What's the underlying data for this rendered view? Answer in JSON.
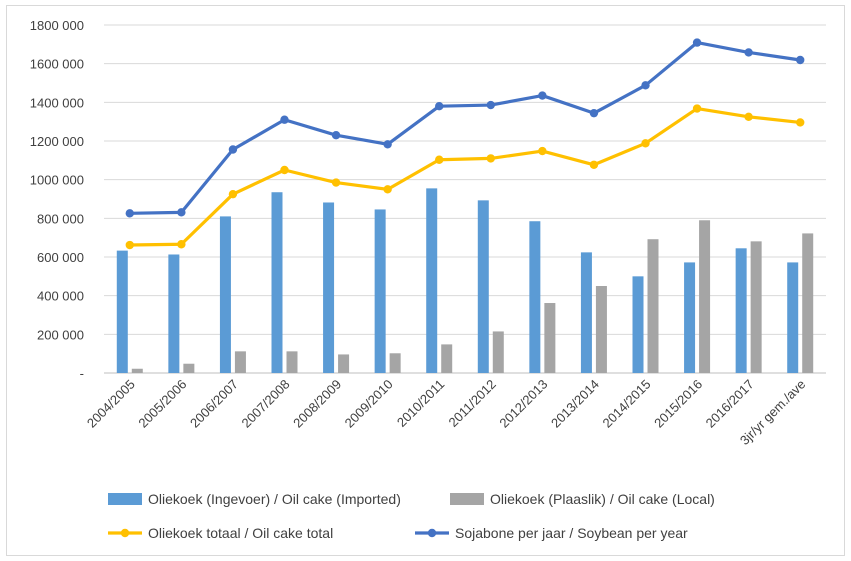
{
  "chart_data": {
    "type": "bar+line",
    "categories": [
      "2004/2005",
      "2005/2006",
      "2006/2007",
      "2007/2008",
      "2008/2009",
      "2009/2010",
      "2010/2011",
      "2011/2012",
      "2012/2013",
      "2013/2014",
      "2014/2015",
      "2015/2016",
      "2016/2017",
      "3jr/yr gem./ave"
    ],
    "series": [
      {
        "name": "Oliekoek (Ingevoer) / Oil cake (Imported)",
        "type": "bar",
        "color": "#5b9bd5",
        "values": [
          633000,
          613000,
          810000,
          935000,
          882000,
          846000,
          955000,
          893000,
          785000,
          624000,
          500000,
          572000,
          645000,
          572000
        ]
      },
      {
        "name": "Oliekoek (Plaaslik) / Oil cake (Local)",
        "type": "bar",
        "color": "#a5a5a5",
        "values": [
          22000,
          48000,
          112000,
          112000,
          96000,
          102000,
          148000,
          215000,
          362000,
          450000,
          692000,
          790000,
          681000,
          722000
        ]
      },
      {
        "name": "Oliekoek totaal / Oil cake total",
        "type": "line",
        "color": "#ffc000",
        "values": [
          662000,
          666000,
          925000,
          1050000,
          985000,
          950000,
          1103000,
          1110000,
          1148000,
          1077000,
          1188000,
          1368000,
          1325000,
          1296000
        ]
      },
      {
        "name": "Sojabone per jaar / Soybean per year",
        "type": "line",
        "color": "#4472c4",
        "values": [
          826000,
          831000,
          1156000,
          1310000,
          1230000,
          1183000,
          1380000,
          1386000,
          1435000,
          1344000,
          1488000,
          1709000,
          1658000,
          1619000
        ]
      }
    ],
    "ylim": [
      0,
      1800000
    ],
    "yticks": [
      {
        "value": 0,
        "label": "-"
      },
      {
        "value": 200000,
        "label": "200 000"
      },
      {
        "value": 400000,
        "label": "400 000"
      },
      {
        "value": 600000,
        "label": "600 000"
      },
      {
        "value": 800000,
        "label": "800 000"
      },
      {
        "value": 1000000,
        "label": "1000 000"
      },
      {
        "value": 1200000,
        "label": "1200 000"
      },
      {
        "value": 1400000,
        "label": "1400 000"
      },
      {
        "value": 1600000,
        "label": "1600 000"
      },
      {
        "value": 1800000,
        "label": "1800 000"
      }
    ],
    "grid": true,
    "legend_position": "bottom"
  }
}
